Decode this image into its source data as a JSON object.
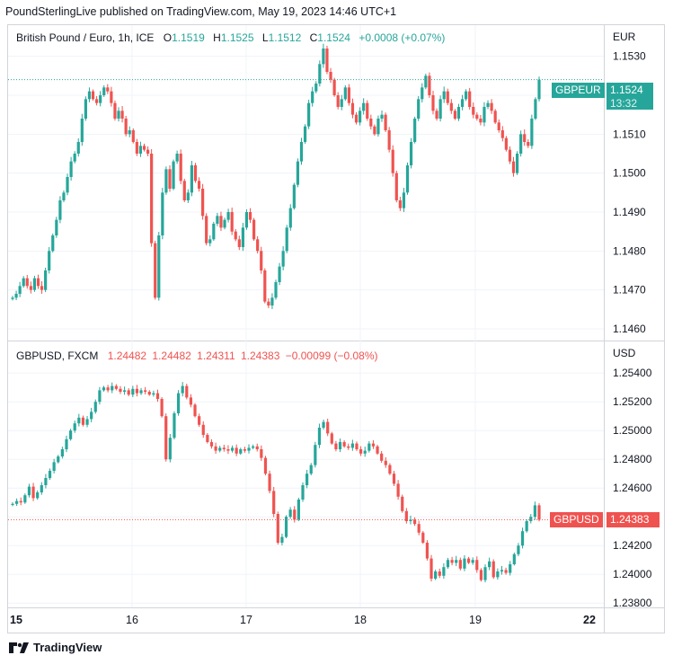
{
  "header": {
    "text": "PoundSterlingLive published on TradingView.com, May 19, 2023 14:46 UTC+1"
  },
  "footer": {
    "brand": "TradingView"
  },
  "colors": {
    "up": "#26a69a",
    "down": "#ef5350",
    "grid": "#f0f3fa",
    "border": "#d1d4dc",
    "text": "#131722"
  },
  "icons": {
    "logo": "tradingview-logo-icon"
  },
  "chart_data": [
    {
      "type": "candlestick",
      "id": "gbpeur",
      "legend": {
        "title": "British Pound / Euro, 1h, ICE",
        "o_label": "O",
        "o": "1.1519",
        "h_label": "H",
        "h": "1.1525",
        "l_label": "L",
        "l": "1.1512",
        "c_label": "C",
        "c": "1.1524",
        "change": "+0.0008 (+0.07%)"
      },
      "axis_unit": "EUR",
      "y_ticks": [
        "1.1530",
        "1.1520",
        "1.1510",
        "1.1500",
        "1.1490",
        "1.1480",
        "1.1470",
        "1.1460"
      ],
      "ylim": [
        1.1457,
        1.1538
      ],
      "last_price": {
        "symbol": "GBPEUR",
        "value": "1.1524",
        "countdown": "13:32",
        "color": "#26a69a"
      },
      "closes": [
        1.1468,
        1.1469,
        1.1471,
        1.1473,
        1.1471,
        1.147,
        1.1473,
        1.1471,
        1.147,
        1.1475,
        1.148,
        1.1484,
        1.1488,
        1.1493,
        1.1495,
        1.1499,
        1.1503,
        1.1505,
        1.1508,
        1.1514,
        1.1519,
        1.1521,
        1.1519,
        1.1518,
        1.152,
        1.1522,
        1.1521,
        1.1518,
        1.1514,
        1.1516,
        1.1514,
        1.151,
        1.1511,
        1.1508,
        1.1505,
        1.1507,
        1.1506,
        1.1505,
        1.1482,
        1.1468,
        1.1484,
        1.1495,
        1.1501,
        1.1496,
        1.1503,
        1.1505,
        1.1498,
        1.1493,
        1.1495,
        1.1502,
        1.1498,
        1.1496,
        1.1489,
        1.1482,
        1.1483,
        1.1487,
        1.1489,
        1.1486,
        1.1488,
        1.149,
        1.1485,
        1.1483,
        1.1481,
        1.1486,
        1.149,
        1.1488,
        1.1483,
        1.148,
        1.1475,
        1.1467,
        1.1466,
        1.1468,
        1.1472,
        1.1476,
        1.148,
        1.1486,
        1.1491,
        1.1497,
        1.1503,
        1.1508,
        1.1512,
        1.1518,
        1.1521,
        1.1523,
        1.1528,
        1.1532,
        1.1526,
        1.1524,
        1.152,
        1.1517,
        1.1519,
        1.1522,
        1.1518,
        1.1515,
        1.1513,
        1.1516,
        1.1518,
        1.1514,
        1.1512,
        1.151,
        1.1514,
        1.1515,
        1.1511,
        1.1506,
        1.15,
        1.1493,
        1.1491,
        1.1495,
        1.1502,
        1.1508,
        1.1514,
        1.1519,
        1.1522,
        1.1525,
        1.152,
        1.1516,
        1.1514,
        1.1519,
        1.1521,
        1.1518,
        1.1516,
        1.1514,
        1.1517,
        1.1519,
        1.1521,
        1.1517,
        1.1515,
        1.1514,
        1.1513,
        1.1517,
        1.1518,
        1.1516,
        1.1513,
        1.1511,
        1.1509,
        1.1506,
        1.1503,
        1.15,
        1.1505,
        1.151,
        1.1508,
        1.1507,
        1.1514,
        1.1519,
        1.1524
      ]
    },
    {
      "type": "candlestick",
      "id": "gbpusd",
      "legend": {
        "title": "GBPUSD, FXCM",
        "o": "1.24482",
        "h": "1.24482",
        "l": "1.24311",
        "c": "1.24383",
        "change": "−0.00099 (−0.08%)"
      },
      "axis_unit": "USD",
      "y_ticks": [
        "1.25400",
        "1.25200",
        "1.25000",
        "1.24800",
        "1.24600",
        "1.24400",
        "1.24200",
        "1.24000",
        "1.23800"
      ],
      "ylim": [
        1.2377,
        1.2562
      ],
      "last_price": {
        "symbol": "GBPUSD",
        "value": "1.24383",
        "color": "#ef5350"
      },
      "closes": [
        1.2449,
        1.2451,
        1.245,
        1.2455,
        1.2461,
        1.2453,
        1.2457,
        1.2462,
        1.2467,
        1.2472,
        1.2478,
        1.2482,
        1.2487,
        1.2494,
        1.25,
        1.2505,
        1.2509,
        1.2504,
        1.2508,
        1.2513,
        1.252,
        1.2528,
        1.253,
        1.2528,
        1.2531,
        1.2529,
        1.2527,
        1.2528,
        1.2525,
        1.2529,
        1.2526,
        1.2528,
        1.2527,
        1.2525,
        1.2526,
        1.2522,
        1.251,
        1.248,
        1.2495,
        1.2512,
        1.2526,
        1.2531,
        1.2523,
        1.2518,
        1.251,
        1.2504,
        1.2497,
        1.2492,
        1.2489,
        1.2486,
        1.2488,
        1.2487,
        1.2486,
        1.2488,
        1.2484,
        1.2487,
        1.2486,
        1.2488,
        1.2489,
        1.2487,
        1.2481,
        1.247,
        1.2458,
        1.2442,
        1.2422,
        1.2426,
        1.244,
        1.2445,
        1.2438,
        1.2452,
        1.2462,
        1.247,
        1.2476,
        1.249,
        1.2502,
        1.2506,
        1.2498,
        1.2491,
        1.2487,
        1.2492,
        1.2489,
        1.2488,
        1.2491,
        1.2487,
        1.2484,
        1.2486,
        1.2491,
        1.2489,
        1.2484,
        1.2479,
        1.2476,
        1.247,
        1.2463,
        1.2454,
        1.2444,
        1.2437,
        1.2438,
        1.2435,
        1.2429,
        1.2422,
        1.2411,
        1.2397,
        1.2402,
        1.2399,
        1.2405,
        1.241,
        1.2408,
        1.241,
        1.2404,
        1.2411,
        1.2408,
        1.241,
        1.2403,
        1.2396,
        1.2405,
        1.2409,
        1.2398,
        1.2402,
        1.2403,
        1.2401,
        1.2407,
        1.2414,
        1.242,
        1.243,
        1.2437,
        1.244,
        1.2448,
        1.2438
      ]
    }
  ],
  "x_axis": {
    "labels": [
      "15",
      "16",
      "17",
      "18",
      "19",
      "22"
    ],
    "bold": [
      "15",
      "22"
    ]
  }
}
